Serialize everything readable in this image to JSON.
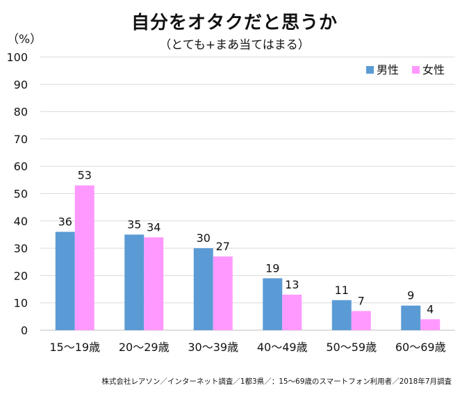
{
  "chart_data": {
    "type": "bar",
    "title": "自分をオタクだと思うか",
    "subtitle": "（とても+まあ当てはまる）",
    "y_unit": "（%）",
    "ylim": [
      0,
      100
    ],
    "y_ticks": [
      0,
      10,
      20,
      30,
      40,
      50,
      60,
      70,
      80,
      90,
      100
    ],
    "grid": true,
    "legend_position": "top-right",
    "categories": [
      "15～19歳",
      "20～29歳",
      "30～39歳",
      "40～49歳",
      "50～59歳",
      "60～69歳"
    ],
    "series": [
      {
        "name": "男性",
        "color": "#5b9bd5",
        "values": [
          36,
          35,
          30,
          19,
          11,
          9
        ]
      },
      {
        "name": "女性",
        "color": "#ff99ff",
        "values": [
          53,
          34,
          27,
          13,
          7,
          4
        ]
      }
    ],
    "source_note": "株式会社レアソン／インターネット調査／1都3県／：15～69歳のスマートフォン利用者／2018年7月調査"
  }
}
